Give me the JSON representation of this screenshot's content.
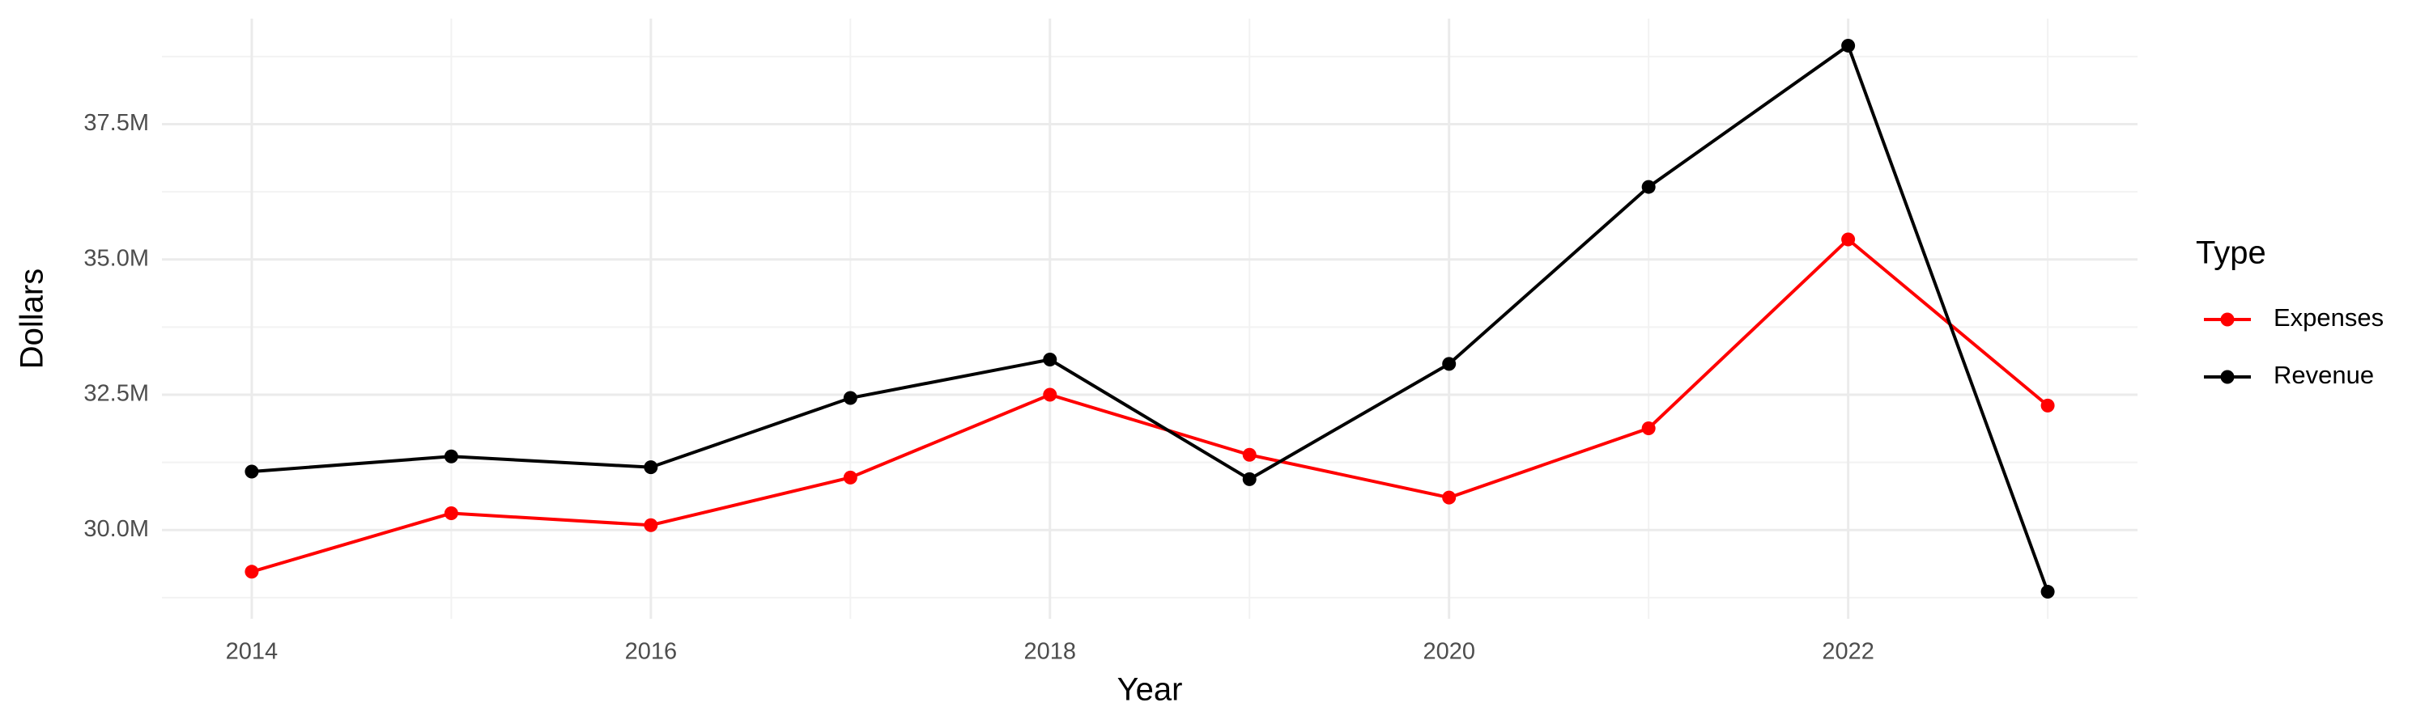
{
  "chart_data": {
    "type": "line",
    "x_label": "Year",
    "y_label": "Dollars",
    "legend_title": "Type",
    "x": [
      2014,
      2015,
      2016,
      2017,
      2018,
      2019,
      2020,
      2021,
      2022,
      2023
    ],
    "series": [
      {
        "name": "Expenses",
        "color": "#ff0000",
        "values": [
          29230000,
          30310000,
          30090000,
          30970000,
          32500000,
          31390000,
          30600000,
          31880000,
          35370000,
          32300000
        ]
      },
      {
        "name": "Revenue",
        "color": "#000000",
        "values": [
          31080000,
          31360000,
          31160000,
          32440000,
          33150000,
          30940000,
          33070000,
          36340000,
          38950000,
          28860000
        ]
      }
    ],
    "xlim": [
      2013.55,
      2023.45
    ],
    "xticks": [
      2014,
      2016,
      2018,
      2020,
      2022
    ],
    "ylim": [
      28360000,
      39450000
    ],
    "yticks": [
      {
        "value": 30000000,
        "label": "30.0M"
      },
      {
        "value": 32500000,
        "label": "32.5M"
      },
      {
        "value": 35000000,
        "label": "35.0M"
      },
      {
        "value": 37500000,
        "label": "37.5M"
      }
    ],
    "grid": true,
    "legend_position": "right"
  }
}
